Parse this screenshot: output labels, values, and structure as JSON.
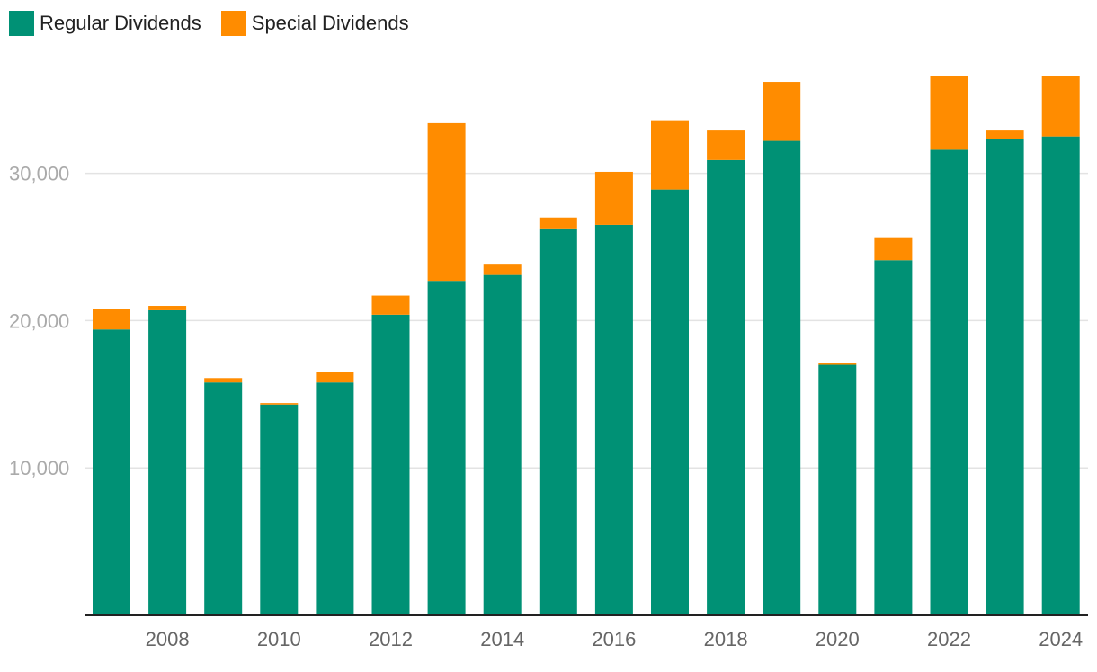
{
  "chart_data": {
    "type": "bar",
    "stacked": true,
    "categories": [
      "2007",
      "2008",
      "2009",
      "2010",
      "2011",
      "2012",
      "2013",
      "2014",
      "2015",
      "2016",
      "2017",
      "2018",
      "2019",
      "2020",
      "2021",
      "2022",
      "2023",
      "2024"
    ],
    "x_tick_labels": [
      "2008",
      "2010",
      "2012",
      "2014",
      "2016",
      "2018",
      "2020",
      "2022",
      "2024"
    ],
    "series": [
      {
        "name": "Regular Dividends",
        "color": "#009175",
        "values": [
          19400,
          20700,
          15800,
          14300,
          15800,
          20400,
          22700,
          23100,
          26200,
          26500,
          28900,
          30900,
          32200,
          17000,
          24100,
          31600,
          32300,
          32500
        ]
      },
      {
        "name": "Special Dividends",
        "color": "#FF8C00",
        "values": [
          1400,
          300,
          300,
          100,
          700,
          1300,
          10700,
          700,
          800,
          3600,
          4700,
          2000,
          4000,
          100,
          1500,
          5000,
          600,
          4100
        ]
      }
    ],
    "yticks": [
      10000,
      20000,
      30000
    ],
    "ytick_labels": [
      "10,000",
      "20,000",
      "30,000"
    ],
    "ylim": [
      0,
      38000
    ],
    "grid": true,
    "legend_position": "top-left",
    "title": "",
    "xlabel": "",
    "ylabel": ""
  }
}
